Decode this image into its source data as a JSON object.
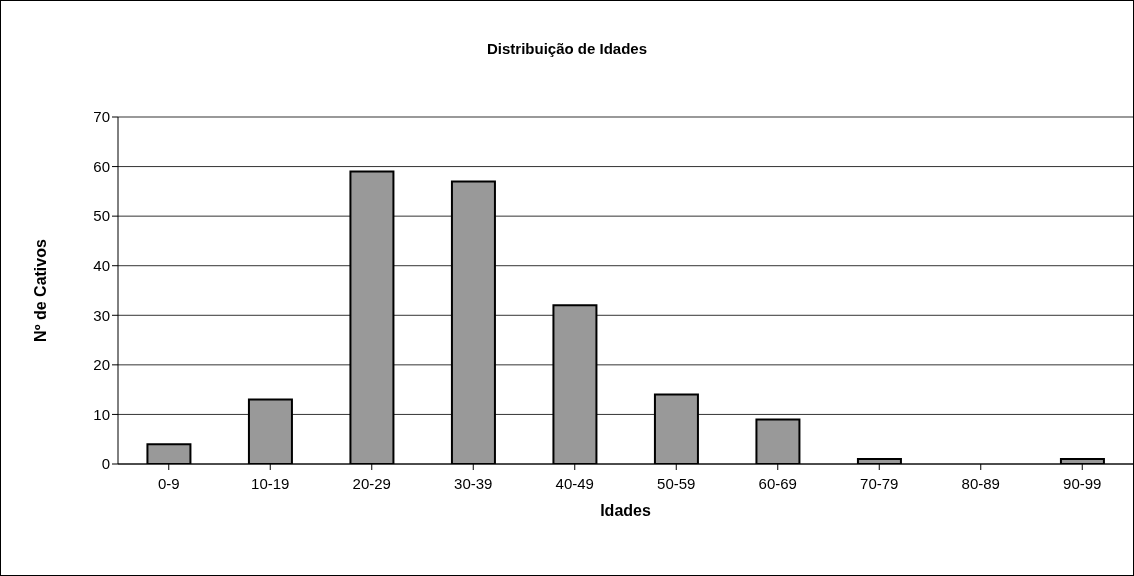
{
  "chart_data": {
    "type": "bar",
    "title": "Distribuição de Idades",
    "xlabel": "Idades",
    "ylabel": "Nº de Cativos",
    "categories": [
      "0-9",
      "10-19",
      "20-29",
      "30-39",
      "40-49",
      "50-59",
      "60-69",
      "70-79",
      "80-89",
      "90-99"
    ],
    "values": [
      4,
      13,
      59,
      57,
      32,
      14,
      9,
      1,
      0,
      1
    ],
    "color": "#999999",
    "ylim": [
      0,
      70
    ],
    "yticks": [
      0,
      10,
      20,
      30,
      40,
      50,
      60,
      70
    ],
    "grid": "y",
    "legend": false
  }
}
